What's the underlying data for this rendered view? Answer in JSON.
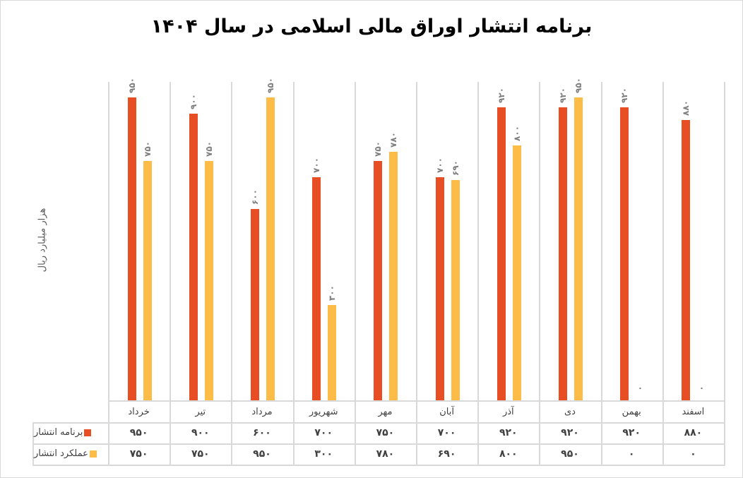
{
  "chart_data": {
    "type": "bar",
    "title": "برنامه انتشار اوراق مالی اسلامی در سال ۱۴۰۴",
    "ylabel": "هزار میلیارد ریال",
    "xlabel": "",
    "categories": [
      "خرداد",
      "تیر",
      "مرداد",
      "شهریور",
      "مهر",
      "آبان",
      "آذر",
      "دی",
      "بهمن",
      "اسفند"
    ],
    "series": [
      {
        "name": "برنامه انتشار",
        "color": "#e84e23",
        "values": [
          950,
          900,
          600,
          700,
          750,
          700,
          920,
          920,
          920,
          880
        ]
      },
      {
        "name": "عملکرد انتشار",
        "color": "#fdbb47",
        "values": [
          750,
          750,
          950,
          300,
          780,
          690,
          800,
          950,
          0,
          0
        ]
      }
    ],
    "ylim": [
      0,
      950
    ],
    "grid": "vertical category separators",
    "legend_position": "data table (bottom)",
    "data_table": true
  },
  "labels": {
    "s1": [
      "۹۵۰",
      "۹۰۰",
      "۶۰۰",
      "۷۰۰",
      "۷۵۰",
      "۷۰۰",
      "۹۲۰",
      "۹۲۰",
      "۹۲۰",
      "۸۸۰"
    ],
    "s2": [
      "۷۵۰",
      "۷۵۰",
      "۹۵۰",
      "۳۰۰",
      "۷۸۰",
      "۶۹۰",
      "۸۰۰",
      "۹۵۰",
      "۰",
      "۰"
    ]
  }
}
